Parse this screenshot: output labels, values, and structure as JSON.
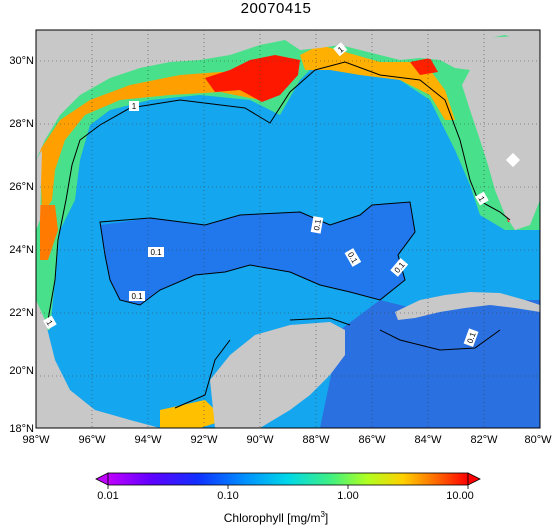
{
  "title": "20070415",
  "x_axis": {
    "ticks": [
      "98°W",
      "96°W",
      "94°W",
      "92°W",
      "90°W",
      "88°W",
      "86°W",
      "84°W",
      "82°W",
      "80°W"
    ]
  },
  "y_axis": {
    "ticks": [
      "18°N",
      "20°N",
      "22°N",
      "24°N",
      "26°N",
      "28°N",
      "30°N"
    ]
  },
  "contour_labels": [
    "1",
    "1",
    "1",
    "1",
    "0.1",
    "0.1",
    "0.1",
    "0.1",
    "0.1",
    "0.1"
  ],
  "colorbar": {
    "label": "Chlorophyll [mg/m",
    "label_unit_sup": "3",
    "label_suffix": "]",
    "ticks": [
      "0.01",
      "0.10",
      "1.00",
      "10.00"
    ],
    "scale": "log",
    "colors": [
      "#c000ff",
      "#6000ff",
      "#0040ff",
      "#00a0ff",
      "#00e0e0",
      "#40ff80",
      "#c0ff00",
      "#ffd000",
      "#ff6000",
      "#ff0000"
    ]
  },
  "colors": {
    "land": "#c8c8c8",
    "deep_water": "#1060e0",
    "open_gulf": "#10a8f0",
    "shelf": "#40e090",
    "coastal_high": "#ffa000",
    "river_plume": "#ff2000",
    "contour": "#000000"
  }
}
